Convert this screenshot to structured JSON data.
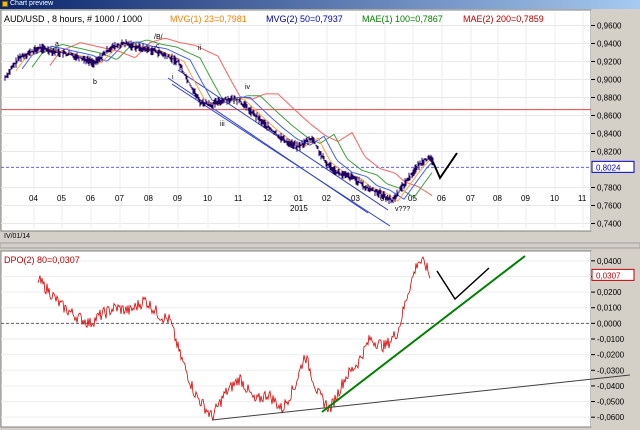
{
  "window": {
    "title": "Chart preview"
  },
  "price_panel": {
    "symbol": "AUD/USD , 8 hours, # 1000 / 1000",
    "indicators": [
      {
        "label": "MVG(1) 23=0,7981",
        "color": "#ff7f00"
      },
      {
        "label": "MVG(2) 50=0,7937",
        "color": "#0000c0"
      },
      {
        "label": "MAE(1) 100=0,7867",
        "color": "#008000"
      },
      {
        "label": "MAE(2) 200=0,7859",
        "color": "#c00000"
      }
    ],
    "y_ticks": [
      "0,9600",
      "0,9400",
      "0,9200",
      "0,9000",
      "0,8800",
      "0,8600",
      "0,8400",
      "0,8200",
      "0,7800",
      "0,7600",
      "0,7400"
    ],
    "y_ticks_values": [
      0.96,
      0.94,
      0.92,
      0.9,
      0.88,
      0.86,
      0.84,
      0.82,
      0.78,
      0.76,
      0.74
    ],
    "current_price": "0,8024",
    "current_value": 0.8024,
    "resistance_value": 0.8665,
    "x_ticks": [
      "04",
      "05",
      "06",
      "07",
      "08",
      "09",
      "10",
      "11",
      "12",
      "01",
      "02",
      "03",
      "04",
      "05",
      "06",
      "07",
      "08",
      "09",
      "10",
      "11"
    ],
    "year_label": "2015",
    "date_label": "IV/01/14",
    "wave_labels": [
      "a",
      "b",
      "c",
      "/B/",
      "ii",
      "i",
      "iii",
      "iv",
      "v???"
    ],
    "ymin": 0.735,
    "ymax": 0.975
  },
  "dpo_panel": {
    "label": "DPO(2) 80=0,0307",
    "y_ticks": [
      "0,0400",
      "0,0300",
      "0,0200",
      "0,0100",
      "0,0000",
      "-0,0100",
      "-0,0200",
      "-0,0300",
      "-0,0400",
      "-0,0500",
      "-0,0600"
    ],
    "y_ticks_values": [
      0.04,
      0.03,
      0.02,
      0.01,
      0.0,
      -0.01,
      -0.02,
      -0.03,
      -0.04,
      -0.05,
      -0.06
    ],
    "current_value_label": "0,0307",
    "current_value": 0.0307,
    "ymin": -0.065,
    "ymax": 0.045
  },
  "colors": {
    "price_line": "#000080",
    "dpo_line": "#e00000",
    "trend_green": "#008000",
    "channel_blue": "#3040d0",
    "resistance_red": "#ff4040"
  }
}
